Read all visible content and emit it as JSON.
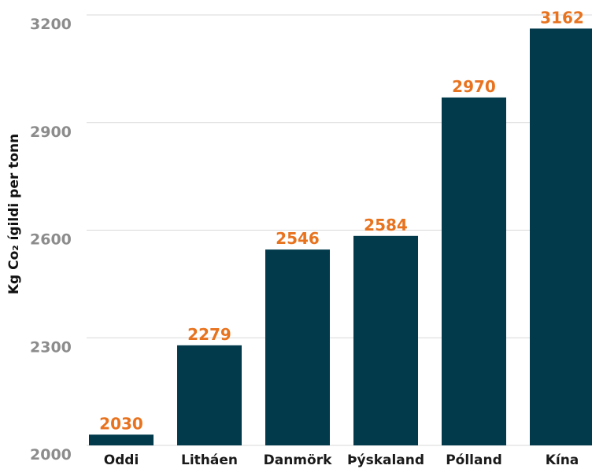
{
  "chart_data": {
    "type": "bar",
    "categories": [
      "Oddi",
      "Litháen",
      "Danmörk",
      "Þýskaland",
      "Pólland",
      "Kína"
    ],
    "values": [
      2030,
      2279,
      2546,
      2584,
      2970,
      3162
    ],
    "ylabel": "Kg Co₂ ígildi per tonn",
    "ylim": [
      2000,
      3200
    ],
    "yticks": [
      2000,
      2300,
      2600,
      2900,
      3200
    ],
    "grid": true,
    "colors": {
      "bar": "#023a4c",
      "data_label": "#e8731f",
      "grid": "#d9d9d9",
      "tick_label": "#8c8c8c",
      "category_label": "#1a1a1a"
    }
  }
}
